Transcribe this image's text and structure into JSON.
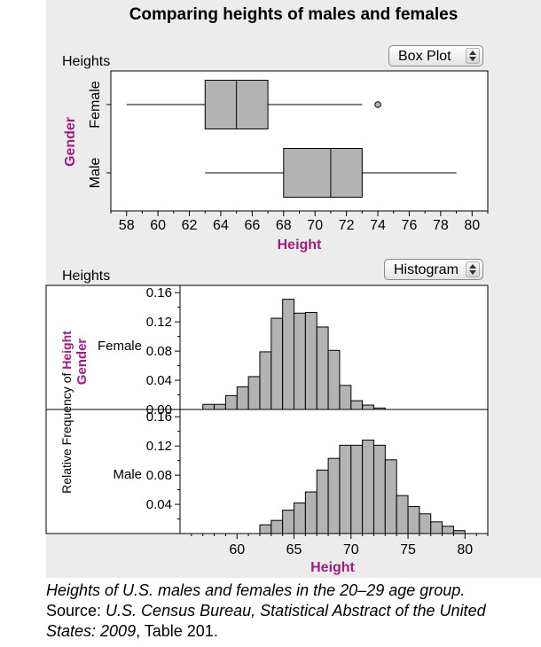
{
  "title": "Comparing heights of males and females",
  "top_section": {
    "label": "Heights",
    "menu_value": "Box Plot"
  },
  "bottom_section": {
    "label": "Heights",
    "menu_value": "Histogram"
  },
  "colors": {
    "accent": "#a01c7d",
    "fill": "#b3b3b3",
    "panel": "#ececec"
  },
  "caption": {
    "line1": "Heights of U.S. males and females in the 20–29 age group.",
    "source_prefix": "Source: ",
    "source_title": "U.S. Census Bureau, Statistical Abstract of the United States: 2009",
    "source_suffix": ", Table 201."
  },
  "chart_data": [
    {
      "type": "box",
      "xlabel": "Height",
      "ylabel": "Gender",
      "xlim": [
        57,
        81
      ],
      "xticks": [
        58,
        60,
        62,
        64,
        66,
        68,
        70,
        72,
        74,
        76,
        78,
        80
      ],
      "groups": [
        {
          "name": "Female",
          "min": 58,
          "q1": 63,
          "median": 65,
          "q3": 67,
          "max": 73,
          "outliers": [
            74
          ]
        },
        {
          "name": "Male",
          "min": 63,
          "q1": 68,
          "median": 71,
          "q3": 73,
          "max": 79,
          "outliers": []
        }
      ]
    },
    {
      "type": "histogram",
      "xlabel": "Height",
      "ylabel_prefix": "Relative Frequency of ",
      "ylabel_var": "Height",
      "group_label": "Gender",
      "xlim": [
        55,
        82
      ],
      "xticks": [
        60,
        65,
        70,
        75,
        80
      ],
      "bin_width": 1,
      "panels": [
        {
          "name": "Female",
          "ylim": [
            0,
            0.17
          ],
          "yticks": [
            "0.00",
            "0.04",
            "0.08",
            "0.12",
            "0.16"
          ],
          "bin_starts": [
            57,
            58,
            59,
            60,
            61,
            62,
            63,
            64,
            65,
            66,
            67,
            68,
            69,
            70,
            71,
            72
          ],
          "values": [
            0.007,
            0.007,
            0.019,
            0.031,
            0.045,
            0.079,
            0.125,
            0.151,
            0.132,
            0.133,
            0.113,
            0.081,
            0.033,
            0.012,
            0.006,
            0.002
          ]
        },
        {
          "name": "Male",
          "ylim": [
            0,
            0.17
          ],
          "yticks": [
            "0.04",
            "0.08",
            "0.12",
            "0.16"
          ],
          "bin_starts": [
            62,
            63,
            64,
            65,
            66,
            67,
            68,
            69,
            70,
            71,
            72,
            73,
            74,
            75,
            76,
            77,
            78,
            79
          ],
          "values": [
            0.012,
            0.018,
            0.032,
            0.042,
            0.057,
            0.087,
            0.103,
            0.121,
            0.121,
            0.128,
            0.121,
            0.101,
            0.052,
            0.037,
            0.027,
            0.016,
            0.01,
            0.004
          ]
        }
      ]
    }
  ]
}
